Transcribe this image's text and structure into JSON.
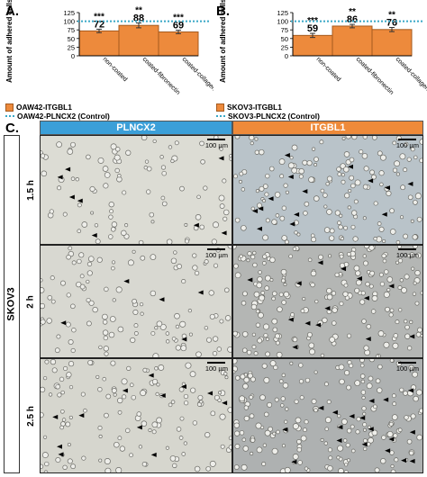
{
  "figure": {
    "panels": [
      {
        "letter": "A.",
        "ylabel": "Amount of adhered cells [%]",
        "legend_bar": "OAW42-ITGBL1",
        "legend_line": "OAW42-PLNCX2 (Control)"
      },
      {
        "letter": "B.",
        "ylabel": "Amount of adhered cells [%]",
        "legend_bar": "SKOV3-ITGBL1",
        "legend_line": "SKOV3-PLNCX2 (Control)"
      }
    ],
    "panel_c": {
      "letter": "C.",
      "columns": [
        "PLNCX2",
        "ITGBL1"
      ],
      "rows": [
        "1.5 h",
        "2 h",
        "2.5 h"
      ],
      "cell_line": "SKOV3",
      "scale_label": "100 µm"
    }
  },
  "colors": {
    "bar_fill": "#ed8a3c",
    "bar_stroke": "#a55a1e",
    "control_line": "#39a7c6",
    "plncx2_header": "#3b9fd8",
    "itgbl1_header": "#ee8a3a"
  },
  "chart_data": [
    {
      "type": "bar",
      "categories": [
        "non-coated",
        "coated-fibronectin",
        "coated-collagen IV"
      ],
      "series": [
        {
          "name": "OAW42-ITGBL1",
          "values": [
            72,
            88,
            69
          ],
          "errors": [
            5,
            7,
            5
          ],
          "significance": [
            "***",
            "**",
            "***"
          ]
        },
        {
          "name": "OAW42-PLNCX2 (Control)",
          "values": [
            100,
            100,
            100
          ]
        }
      ],
      "ylabel": "Amount of adhered cells [%]",
      "ylim": [
        0,
        125
      ],
      "yticks": [
        0,
        25,
        50,
        75,
        100,
        125
      ],
      "grid": false,
      "legend_position": "bottom-left"
    },
    {
      "type": "bar",
      "categories": [
        "non-coated",
        "coated-fibronectin",
        "coated-collagen IV"
      ],
      "series": [
        {
          "name": "SKOV3-ITGBL1",
          "values": [
            59,
            86,
            76
          ],
          "errors": [
            6,
            5,
            6
          ],
          "significance": [
            "***",
            "**",
            "**"
          ]
        },
        {
          "name": "SKOV3-PLNCX2 (Control)",
          "values": [
            100,
            100,
            100
          ]
        }
      ],
      "ylabel": "Amount of adhered cells [%]",
      "ylim": [
        0,
        125
      ],
      "yticks": [
        0,
        25,
        50,
        75,
        100,
        125
      ],
      "grid": false,
      "legend_position": "bottom-left"
    }
  ]
}
